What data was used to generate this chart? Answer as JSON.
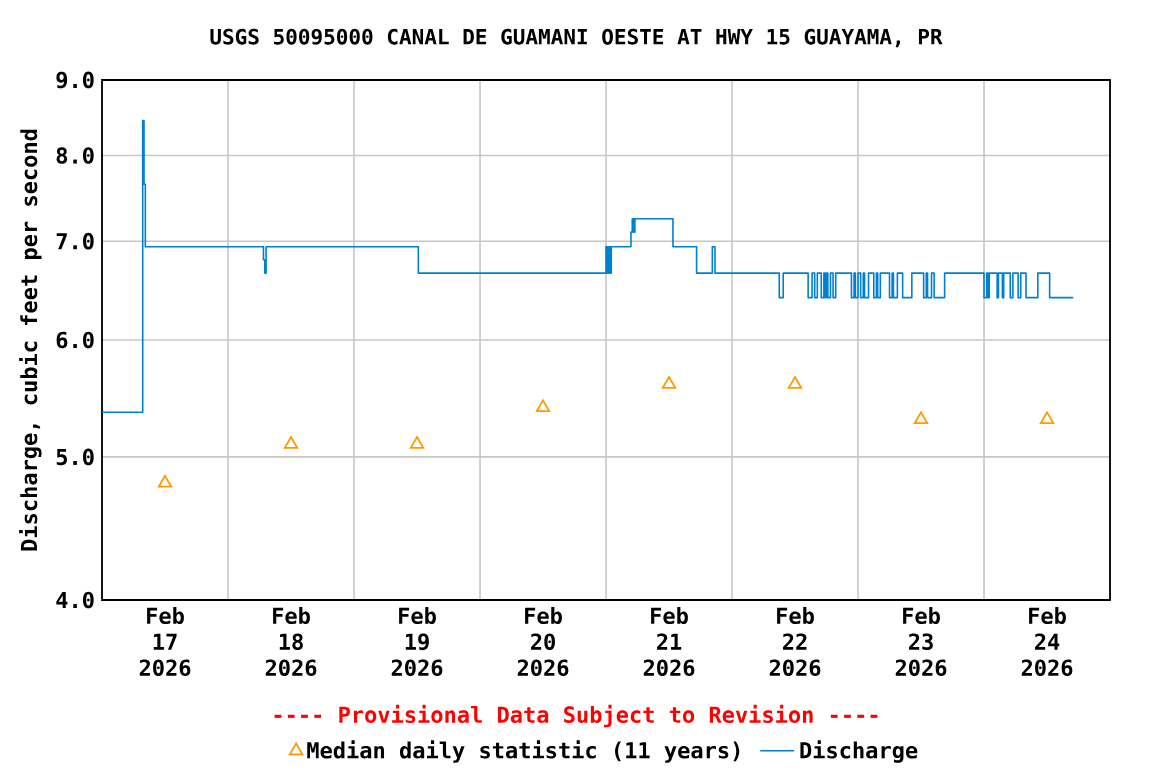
{
  "chart_data": {
    "type": "step",
    "title": "USGS 50095000 CANAL DE GUAMANI OESTE AT HWY 15 GUAYAMA, PR",
    "ylabel": "Discharge, cubic feet per second",
    "annotations": [
      "---- Provisional Data Subject to Revision ----"
    ],
    "log": "y",
    "grid": true,
    "legend": "bottom",
    "xlim": [
      "2026-02-17T00:00",
      "2026-02-25T00:00"
    ],
    "xticks": [
      {
        "value": "2026-02-17T00:00",
        "label": null
      },
      {
        "value": "2026-02-17T12:00",
        "label": "Feb 17 2026"
      },
      {
        "value": "2026-02-18T00:00",
        "label": null
      },
      {
        "value": "2026-02-18T12:00",
        "label": "Feb 18 2026"
      },
      {
        "value": "2026-02-19T00:00",
        "label": null
      },
      {
        "value": "2026-02-19T12:00",
        "label": "Feb 19 2026"
      },
      {
        "value": "2026-02-20T00:00",
        "label": null
      },
      {
        "value": "2026-02-20T12:00",
        "label": "Feb 20 2026"
      },
      {
        "value": "2026-02-21T00:00",
        "label": null
      },
      {
        "value": "2026-02-21T12:00",
        "label": "Feb 21 2026"
      },
      {
        "value": "2026-02-22T00:00",
        "label": null
      },
      {
        "value": "2026-02-22T12:00",
        "label": "Feb 22 2026"
      },
      {
        "value": "2026-02-23T00:00",
        "label": null
      },
      {
        "value": "2026-02-23T12:00",
        "label": "Feb 23 2026"
      },
      {
        "value": "2026-02-24T00:00",
        "label": null
      },
      {
        "value": "2026-02-24T12:00",
        "label": "Feb 24 2026"
      },
      {
        "value": "2026-02-25T00:00",
        "label": null
      }
    ],
    "ylim": [
      4,
      9
    ],
    "yticks": [
      {
        "value": 4,
        "label": "4.0"
      },
      {
        "value": 5,
        "label": "5.0"
      },
      {
        "value": 6,
        "label": "6.0"
      },
      {
        "value": 7,
        "label": "7.0"
      },
      {
        "value": 8,
        "label": "8.0"
      },
      {
        "value": 9,
        "label": "9.0"
      }
    ],
    "series": [
      {
        "name": "Median daily statistic (11 years)",
        "type": "scatter",
        "marker": "triangle",
        "color": "#ff9900",
        "x": [
          "2026-02-17T12:00",
          "2026-02-18T12:00",
          "2026-02-19T12:00",
          "2026-02-20T12:00",
          "2026-02-21T12:00",
          "2026-02-22T12:00",
          "2026-02-23T12:00",
          "2026-02-24T12:00"
        ],
        "values": [
          4.8,
          5.1,
          5.1,
          5.4,
          5.6,
          5.6,
          5.3,
          5.3
        ]
      },
      {
        "name": "Discharge",
        "color": "#0080d0",
        "x": [
          "2026-02-17T00:00",
          "2026-02-17T07:45",
          "2026-02-17T08:00",
          "2026-02-17T08:15",
          "2026-02-18T06:45",
          "2026-02-18T07:00",
          "2026-02-18T07:15",
          "2026-02-19T12:15",
          "2026-02-21T00:00",
          "2026-02-21T00:15",
          "2026-02-21T00:30",
          "2026-02-21T00:45",
          "2026-02-21T01:00",
          "2026-02-21T04:45",
          "2026-02-21T05:00",
          "2026-02-21T05:15",
          "2026-02-21T05:30",
          "2026-02-21T12:45",
          "2026-02-21T17:15",
          "2026-02-21T20:15",
          "2026-02-21T20:45",
          "2026-02-22T09:00",
          "2026-02-22T09:45",
          "2026-02-22T14:30",
          "2026-02-22T15:15",
          "2026-02-22T15:45",
          "2026-02-22T16:15",
          "2026-02-22T17:00",
          "2026-02-22T17:30",
          "2026-02-22T17:45",
          "2026-02-22T18:00",
          "2026-02-22T18:15",
          "2026-02-22T18:45",
          "2026-02-22T19:15",
          "2026-02-22T19:45",
          "2026-02-22T22:45",
          "2026-02-22T23:15",
          "2026-02-22T23:30",
          "2026-02-23T00:00",
          "2026-02-23T00:30",
          "2026-02-23T01:00",
          "2026-02-23T01:15",
          "2026-02-23T02:00",
          "2026-02-23T03:00",
          "2026-02-23T03:30",
          "2026-02-23T03:45",
          "2026-02-23T04:15",
          "2026-02-23T06:00",
          "2026-02-23T06:30",
          "2026-02-23T06:45",
          "2026-02-23T07:30",
          "2026-02-23T08:30",
          "2026-02-23T10:15",
          "2026-02-23T12:30",
          "2026-02-23T13:00",
          "2026-02-23T13:15",
          "2026-02-23T14:00",
          "2026-02-23T14:30",
          "2026-02-23T16:30",
          "2026-02-24T00:00",
          "2026-02-24T00:30",
          "2026-02-24T00:45",
          "2026-02-24T01:00",
          "2026-02-24T02:30",
          "2026-02-24T02:45",
          "2026-02-24T03:30",
          "2026-02-24T03:45",
          "2026-02-24T05:00",
          "2026-02-24T05:30",
          "2026-02-24T06:30",
          "2026-02-24T07:00",
          "2026-02-24T08:00",
          "2026-02-24T10:15",
          "2026-02-24T12:30",
          "2026-02-24T17:00"
        ],
        "values": [
          5.36,
          8.45,
          7.65,
          6.94,
          6.8,
          6.66,
          6.94,
          6.66,
          6.94,
          6.66,
          6.94,
          6.66,
          6.94,
          7.1,
          7.25,
          7.1,
          7.25,
          6.94,
          6.66,
          6.94,
          6.66,
          6.41,
          6.66,
          6.41,
          6.66,
          6.41,
          6.66,
          6.41,
          6.66,
          6.41,
          6.66,
          6.41,
          6.66,
          6.41,
          6.66,
          6.41,
          6.66,
          6.41,
          6.66,
          6.41,
          6.66,
          6.41,
          6.66,
          6.41,
          6.66,
          6.41,
          6.66,
          6.41,
          6.66,
          6.41,
          6.66,
          6.41,
          6.66,
          6.41,
          6.66,
          6.41,
          6.66,
          6.41,
          6.66,
          6.41,
          6.66,
          6.41,
          6.66,
          6.41,
          6.66,
          6.41,
          6.66,
          6.41,
          6.66,
          6.41,
          6.66,
          6.41,
          6.66,
          6.41,
          6.41
        ]
      }
    ]
  }
}
